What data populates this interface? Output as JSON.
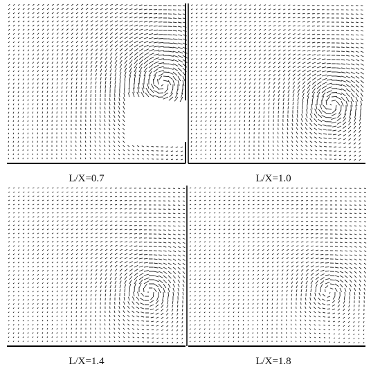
{
  "figure": {
    "panels": [
      {
        "caption": "L/X=0.7"
      },
      {
        "caption": "L/X=1.0"
      },
      {
        "caption": "L/X=1.4"
      },
      {
        "caption": "L/X=1.8"
      }
    ]
  }
}
